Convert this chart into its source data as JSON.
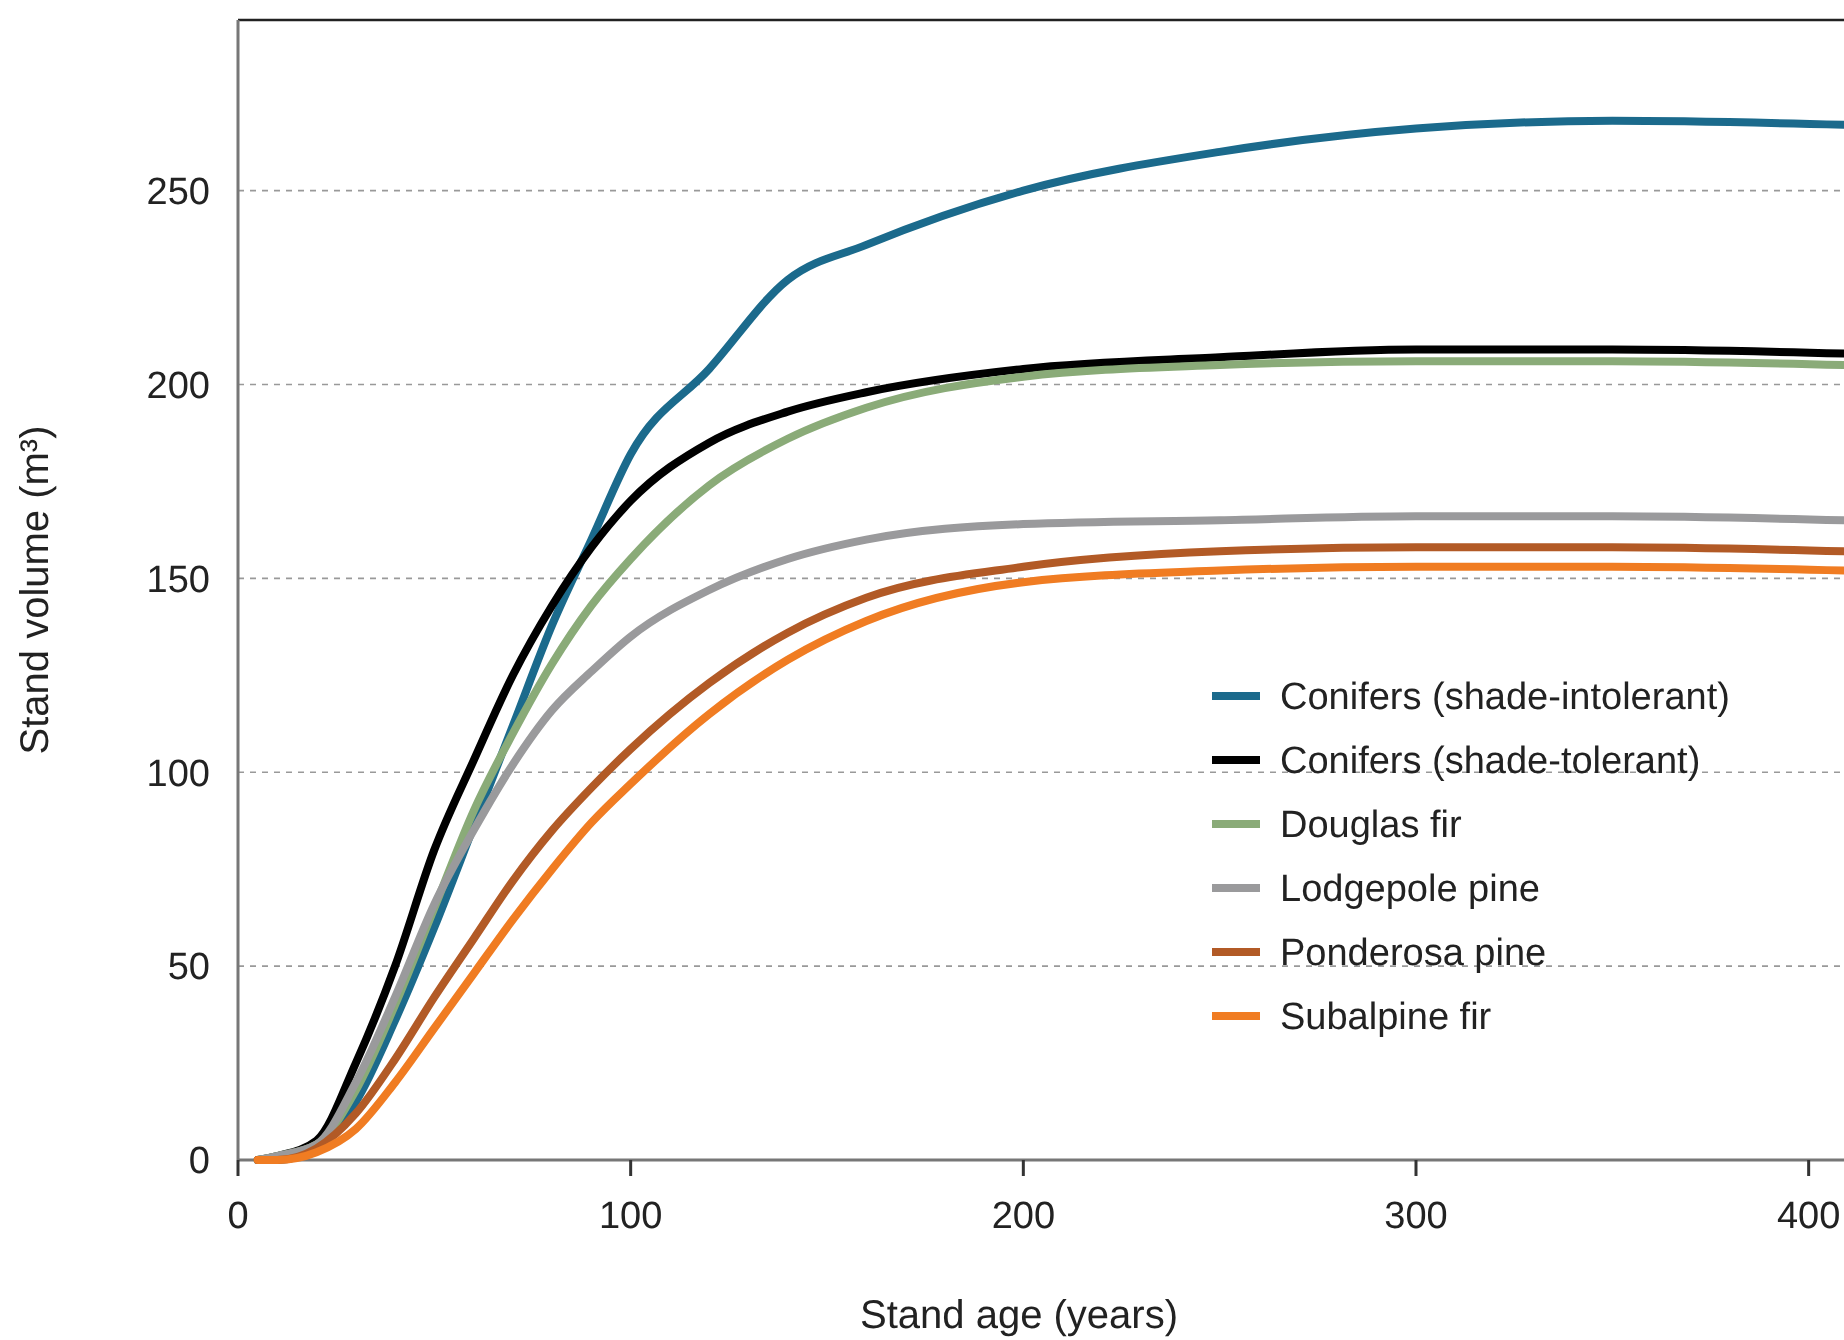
{
  "chart_data": {
    "type": "line",
    "xlabel": "Stand age (years)",
    "ylabel": "Stand volume (m³)",
    "x": [
      5,
      10,
      20,
      30,
      40,
      50,
      60,
      70,
      80,
      90,
      100,
      120,
      140,
      160,
      200,
      250,
      300,
      350,
      409
    ],
    "series": [
      {
        "name": "Conifers (shade-intolerant)",
        "color": "#1b6a8c",
        "values": [
          0,
          0,
          3,
          15,
          36,
          60,
          86,
          112,
          138,
          160,
          182,
          204,
          227,
          236,
          250,
          260,
          266,
          268,
          267
        ]
      },
      {
        "name": "Conifers (shade-tolerant)",
        "color": "#000000",
        "values": [
          0,
          1,
          5,
          25,
          50,
          80,
          103,
          125,
          143,
          158,
          170,
          185,
          193,
          198,
          204,
          207,
          209,
          209,
          208
        ]
      },
      {
        "name": "Douglas fir",
        "color": "#8aab78",
        "values": [
          0,
          1,
          4,
          18,
          40,
          65,
          90,
          110,
          128,
          143,
          155,
          174,
          186,
          194,
          202,
          205,
          206,
          206,
          205
        ]
      },
      {
        "name": "Lodgepole pine",
        "color": "#9a9a9c",
        "values": [
          0,
          1,
          4,
          20,
          42,
          66,
          85,
          102,
          116,
          126,
          135,
          147,
          155,
          160,
          164,
          165,
          166,
          166,
          165
        ]
      },
      {
        "name": "Ponderosa pine",
        "color": "#b25a26",
        "values": [
          0,
          0,
          3,
          12,
          26,
          42,
          57,
          72,
          85,
          96,
          106,
          123,
          136,
          145,
          153,
          157,
          158,
          158,
          157
        ]
      },
      {
        "name": "Subalpine fir",
        "color": "#f07c22",
        "values": [
          0,
          0,
          2,
          8,
          20,
          34,
          48,
          62,
          75,
          87,
          97,
          115,
          129,
          139,
          149,
          152,
          153,
          153,
          152
        ]
      }
    ],
    "xlim": [
      0,
      409
    ],
    "xticks": [
      0,
      100,
      200,
      300,
      400
    ],
    "ylim": [
      0,
      294
    ],
    "yticks": [
      0,
      50,
      100,
      150,
      200,
      250
    ],
    "grid": "y",
    "legend": "bottom right"
  }
}
